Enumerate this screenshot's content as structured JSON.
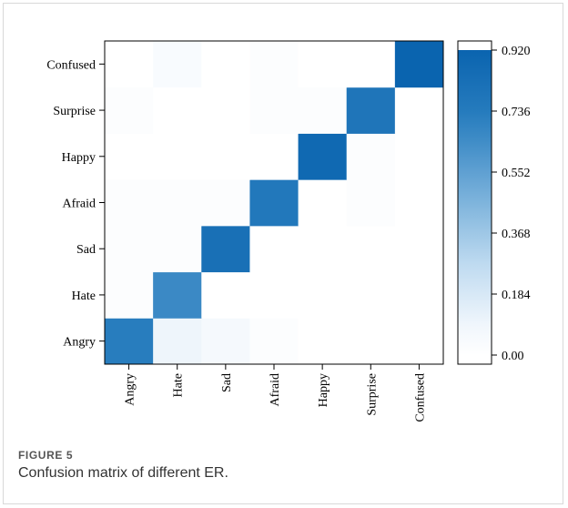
{
  "chart_data": {
    "type": "heatmap",
    "x_categories": [
      "Angry",
      "Hate",
      "Sad",
      "Afraid",
      "Happy",
      "Surprise",
      "Confused"
    ],
    "y_categories": [
      "Angry",
      "Hate",
      "Sad",
      "Afraid",
      "Happy",
      "Surprise",
      "Confused"
    ],
    "matrix": [
      [
        0.72,
        0.1,
        0.06,
        0.02,
        0.0,
        0.0,
        0.0
      ],
      [
        0.02,
        0.66,
        0.0,
        0.0,
        0.0,
        0.0,
        0.0
      ],
      [
        0.02,
        0.02,
        0.82,
        0.0,
        0.0,
        0.0,
        0.0
      ],
      [
        0.02,
        0.02,
        0.02,
        0.76,
        0.0,
        0.02,
        0.0
      ],
      [
        0.0,
        0.0,
        0.0,
        0.0,
        0.88,
        0.02,
        0.0
      ],
      [
        0.02,
        0.0,
        0.0,
        0.02,
        0.02,
        0.78,
        0.0
      ],
      [
        0.0,
        0.04,
        0.0,
        0.02,
        0.0,
        0.0,
        0.92
      ]
    ],
    "colorbar": {
      "min": 0.0,
      "max": 0.92,
      "ticks": [
        "0.00",
        "0.184",
        "0.368",
        "0.552",
        "0.736",
        "0.920"
      ],
      "colormap": "Blues"
    },
    "xlabel": "",
    "ylabel": "",
    "title": ""
  },
  "caption": {
    "label": "FIGURE 5",
    "text": "Confusion matrix of different ER."
  }
}
